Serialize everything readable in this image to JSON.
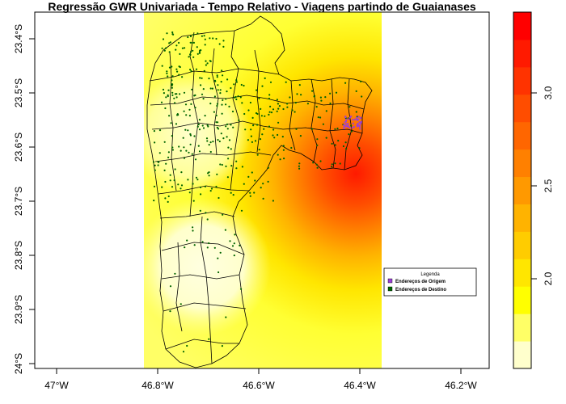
{
  "map": {
    "title": "Regressão GWR Univariada - Tempo Relativo - Viagens partindo de Guaianases",
    "x_ticks": [
      "47°W",
      "46.8°W",
      "46.6°W",
      "46.4°W",
      "46.2°W"
    ],
    "y_ticks": [
      "23.4°S",
      "23.5°S",
      "23.6°S",
      "23.7°S",
      "23.8°S",
      "23.9°S",
      "24°S"
    ],
    "legend": {
      "title": "Legenda",
      "items": [
        {
          "label": "Endereços de Origem",
          "color": "#9a3fd6"
        },
        {
          "label": "Endereços de Destino",
          "color": "#006400"
        }
      ]
    },
    "colorbar": {
      "ticks": [
        "2.0",
        "2.5",
        "3.0"
      ],
      "colors": [
        "#ffffcc",
        "#ffff66",
        "#ffff00",
        "#ffe600",
        "#ffcc00",
        "#ffb300",
        "#ff9900",
        "#ff8000",
        "#ff6600",
        "#ff4d00",
        "#ff3300",
        "#ff1a00",
        "#ff0000"
      ]
    }
  }
}
